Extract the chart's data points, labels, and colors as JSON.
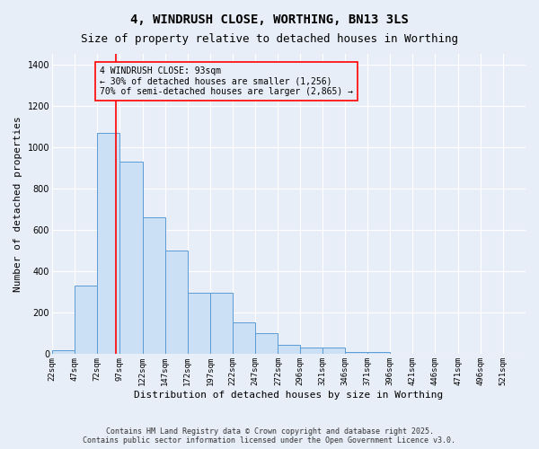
{
  "title": "4, WINDRUSH CLOSE, WORTHING, BN13 3LS",
  "subtitle": "Size of property relative to detached houses in Worthing",
  "xlabel": "Distribution of detached houses by size in Worthing",
  "ylabel": "Number of detached properties",
  "bar_edges": [
    22,
    47,
    72,
    97,
    122,
    147,
    172,
    197,
    222,
    247,
    272,
    296,
    321,
    346,
    371,
    396,
    421,
    446,
    471,
    496,
    521
  ],
  "bar_heights": [
    20,
    330,
    1070,
    930,
    660,
    500,
    295,
    295,
    155,
    100,
    45,
    30,
    30,
    10,
    10,
    0,
    0,
    0,
    0,
    0
  ],
  "bar_color": "#cce0f5",
  "bar_edge_color": "#5b9bd5",
  "red_line_x": 93,
  "annotation_text": "4 WINDRUSH CLOSE: 93sqm\n← 30% of detached houses are smaller (1,256)\n70% of semi-detached houses are larger (2,865) →",
  "ylim": [
    0,
    1450
  ],
  "yticks": [
    0,
    200,
    400,
    600,
    800,
    1000,
    1200,
    1400
  ],
  "tick_labels": [
    "22sqm",
    "47sqm",
    "72sqm",
    "97sqm",
    "122sqm",
    "147sqm",
    "172sqm",
    "197sqm",
    "222sqm",
    "247sqm",
    "272sqm",
    "296sqm",
    "321sqm",
    "346sqm",
    "371sqm",
    "396sqm",
    "421sqm",
    "446sqm",
    "471sqm",
    "496sqm",
    "521sqm"
  ],
  "footnote": "Contains HM Land Registry data © Crown copyright and database right 2025.\nContains public sector information licensed under the Open Government Licence v3.0.",
  "bg_color": "#e8eef7",
  "grid_color": "#ffffff",
  "title_fontsize": 10,
  "subtitle_fontsize": 9,
  "label_fontsize": 8,
  "tick_fontsize": 7
}
